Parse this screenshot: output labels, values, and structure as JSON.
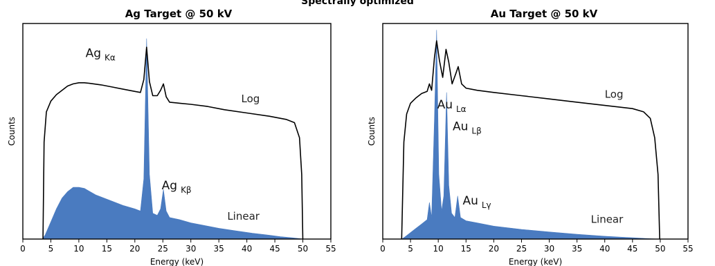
{
  "page": {
    "title": "Spectrally optimized"
  },
  "chart_data": [
    {
      "type": "area",
      "title": "Ag Target @ 50 kV",
      "xlabel": "Energy (keV)",
      "ylabel": "Counts",
      "xlim": [
        0,
        55
      ],
      "ylim": [
        0,
        1
      ],
      "xticks": [
        0,
        5,
        10,
        15,
        20,
        25,
        30,
        35,
        40,
        45,
        50,
        55
      ],
      "grid": false,
      "colors": {
        "linear": "#4a7bc0",
        "log": "#000000"
      },
      "series": [
        {
          "name": "Log",
          "kind": "line",
          "x": [
            3.6,
            3.8,
            4.2,
            5,
            6,
            7,
            8,
            9,
            10,
            11,
            12,
            14,
            16,
            18,
            20,
            21,
            21.6,
            22.1,
            22.6,
            23.2,
            24,
            24.6,
            25.1,
            25.6,
            26.2,
            28,
            30,
            33,
            36,
            40,
            44,
            47,
            48.5,
            49.4,
            49.8,
            50
          ],
          "y": [
            0.0,
            0.45,
            0.59,
            0.64,
            0.67,
            0.69,
            0.71,
            0.72,
            0.725,
            0.725,
            0.722,
            0.715,
            0.705,
            0.695,
            0.685,
            0.68,
            0.74,
            0.89,
            0.73,
            0.665,
            0.665,
            0.69,
            0.72,
            0.66,
            0.635,
            0.63,
            0.625,
            0.615,
            0.6,
            0.585,
            0.57,
            0.555,
            0.54,
            0.47,
            0.3,
            0.0
          ]
        },
        {
          "name": "Linear",
          "kind": "area",
          "x": [
            3.5,
            4,
            5,
            6,
            7,
            8,
            9,
            10,
            11,
            12,
            13,
            14,
            16,
            18,
            20,
            21,
            21.6,
            22.1,
            22.6,
            23.2,
            24,
            24.6,
            25.1,
            25.6,
            26.2,
            28,
            30,
            32,
            35,
            38,
            41,
            44,
            46,
            48,
            49.5,
            50
          ],
          "y": [
            0.0,
            0.02,
            0.08,
            0.14,
            0.19,
            0.22,
            0.24,
            0.24,
            0.235,
            0.22,
            0.205,
            0.195,
            0.175,
            0.155,
            0.14,
            0.13,
            0.28,
            0.93,
            0.3,
            0.12,
            0.11,
            0.14,
            0.23,
            0.13,
            0.1,
            0.09,
            0.075,
            0.065,
            0.05,
            0.038,
            0.027,
            0.018,
            0.011,
            0.006,
            0.002,
            0.0
          ]
        }
      ],
      "annotations": [
        {
          "main": "Ag",
          "sub": "Kα",
          "x": 11.2,
          "y": 0.845
        },
        {
          "main": "Log",
          "x": 39.0,
          "y": 0.635
        },
        {
          "main": "Ag",
          "sub": "Kβ",
          "x": 24.8,
          "y": 0.23
        },
        {
          "main": "Linear",
          "x": 36.5,
          "y": 0.09
        }
      ]
    },
    {
      "type": "area",
      "title": "Au Target @ 50 kV",
      "xlabel": "Energy (keV)",
      "ylabel": "Counts",
      "xlim": [
        0,
        55
      ],
      "ylim": [
        0,
        1
      ],
      "xticks": [
        0,
        5,
        10,
        15,
        20,
        25,
        30,
        35,
        40,
        45,
        50,
        55
      ],
      "grid": false,
      "colors": {
        "linear": "#4a7bc0",
        "log": "#000000"
      },
      "series": [
        {
          "name": "Log",
          "kind": "line",
          "x": [
            3.4,
            3.8,
            4.3,
            5,
            6,
            7,
            8,
            8.4,
            8.8,
            9.3,
            9.7,
            10.2,
            10.8,
            11.4,
            11.9,
            12.5,
            13.2,
            13.6,
            14.2,
            15,
            17,
            20,
            25,
            30,
            35,
            40,
            45,
            47,
            48.2,
            49,
            49.6,
            49.9
          ],
          "y": [
            0.0,
            0.45,
            0.58,
            0.63,
            0.655,
            0.675,
            0.685,
            0.72,
            0.69,
            0.84,
            0.92,
            0.83,
            0.75,
            0.88,
            0.82,
            0.72,
            0.77,
            0.8,
            0.72,
            0.7,
            0.69,
            0.68,
            0.665,
            0.65,
            0.635,
            0.62,
            0.605,
            0.59,
            0.56,
            0.47,
            0.3,
            0.0
          ]
        },
        {
          "name": "Linear",
          "kind": "area",
          "x": [
            3.4,
            4,
            5,
            6,
            7,
            8,
            8.4,
            8.8,
            9.3,
            9.7,
            10.1,
            10.6,
            11.0,
            11.5,
            11.9,
            12.4,
            13.0,
            13.5,
            14.0,
            15,
            17,
            20,
            25,
            30,
            35,
            40,
            45,
            48,
            49.9
          ],
          "y": [
            0.0,
            0.01,
            0.03,
            0.05,
            0.07,
            0.09,
            0.17,
            0.1,
            0.55,
            0.97,
            0.3,
            0.13,
            0.2,
            0.68,
            0.25,
            0.12,
            0.1,
            0.2,
            0.1,
            0.085,
            0.075,
            0.06,
            0.045,
            0.033,
            0.022,
            0.013,
            0.006,
            0.002,
            0.0
          ]
        }
      ],
      "annotations": [
        {
          "main": "Au",
          "sub": "Lα",
          "x": 9.8,
          "y": 0.605
        },
        {
          "main": "Log",
          "x": 40.0,
          "y": 0.655
        },
        {
          "main": "Au",
          "sub": "Lβ",
          "x": 12.6,
          "y": 0.505
        },
        {
          "main": "Au",
          "sub": "Lγ",
          "x": 14.4,
          "y": 0.16
        },
        {
          "main": "Linear",
          "x": 37.5,
          "y": 0.075
        }
      ]
    }
  ]
}
